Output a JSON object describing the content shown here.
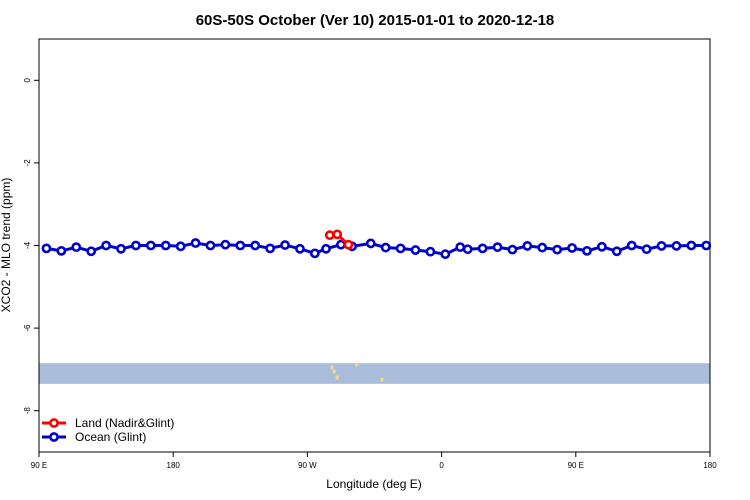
{
  "chart_data": {
    "type": "line",
    "title": "60S-50S October (Ver 10)   2015-01-01 to 2020-12-18",
    "xlabel": "Longitude (deg E)",
    "ylabel": "XCO2 - MLO trend (ppm)",
    "xlim": [
      90,
      540
    ],
    "ylim": [
      -9,
      1
    ],
    "x_ticks": [
      {
        "value": 90,
        "label": "90 E"
      },
      {
        "value": 180,
        "label": "180"
      },
      {
        "value": 270,
        "label": "90 W"
      },
      {
        "value": 360,
        "label": "0"
      },
      {
        "value": 450,
        "label": "90 E"
      },
      {
        "value": 540,
        "label": "180"
      }
    ],
    "y_ticks": [
      {
        "value": 0,
        "label": "0"
      },
      {
        "value": -2,
        "label": "-2"
      },
      {
        "value": -4,
        "label": "-4"
      },
      {
        "value": -6,
        "label": "-6"
      },
      {
        "value": -8,
        "label": "-8"
      }
    ],
    "grid": false,
    "legend_position": "bottom-left",
    "map_band": {
      "ymin": -7.35,
      "ymax": -6.85,
      "color": "#a9bcd9"
    },
    "land_marks": [
      {
        "x": 286.5,
        "y": -6.95
      },
      {
        "x": 288,
        "y": -7.05
      },
      {
        "x": 290,
        "y": -7.2
      },
      {
        "x": 303,
        "y": -6.88
      },
      {
        "x": 320,
        "y": -7.25
      }
    ],
    "land_color": "#f3d98c",
    "series": [
      {
        "name": "Land (Nadir&Glint)",
        "color": "#ff0000",
        "x": [
          285,
          290,
          297.5
        ],
        "y": [
          -3.75,
          -3.73,
          -3.98
        ]
      },
      {
        "name": "Ocean (Glint)",
        "color": "#0000cc",
        "x": [
          95,
          105,
          115,
          125,
          135,
          145,
          155,
          165,
          175,
          185,
          195,
          205,
          215,
          225,
          235,
          245,
          255,
          265,
          275,
          282.5,
          292.5,
          300,
          312.5,
          322.5,
          332.5,
          342.5,
          352.5,
          362.5,
          372.5,
          377.5,
          387.5,
          397.5,
          407.5,
          417.5,
          427.5,
          437.5,
          447.5,
          457.5,
          467.5,
          477.5,
          487.5,
          497.5,
          507.5,
          517.5,
          527.5,
          537.5
        ],
        "y": [
          -4.07,
          -4.13,
          -4.04,
          -4.14,
          -4.0,
          -4.08,
          -4.0,
          -4.0,
          -4.0,
          -4.02,
          -3.94,
          -4.0,
          -3.98,
          -4.0,
          -4.0,
          -4.07,
          -3.99,
          -4.08,
          -4.19,
          -4.08,
          -3.98,
          -4.02,
          -3.95,
          -4.05,
          -4.07,
          -4.11,
          -4.15,
          -4.21,
          -4.04,
          -4.09,
          -4.07,
          -4.04,
          -4.1,
          -4.01,
          -4.05,
          -4.1,
          -4.06,
          -4.13,
          -4.03,
          -4.14,
          -4.0,
          -4.09,
          -4.01,
          -4.01,
          -4.0,
          -4.0
        ]
      }
    ]
  }
}
